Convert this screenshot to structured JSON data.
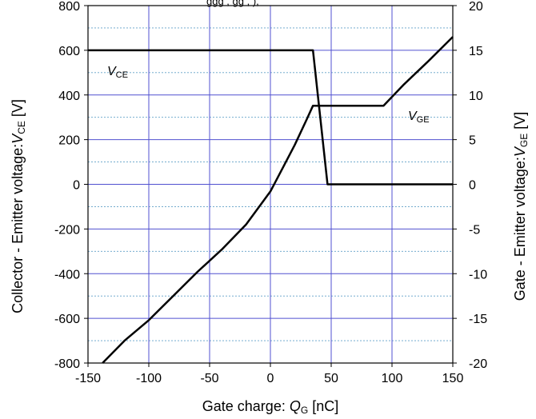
{
  "chart_data": {
    "type": "line",
    "top_note": "ggg  , gg  , ),",
    "xlabel": "Gate charge: ",
    "xlabel_var": "Q",
    "xlabel_sub": "G",
    "xlabel_unit": " [nC]",
    "ylabel": "Collector - Emitter voltage:",
    "ylabel_var": "V",
    "ylabel_sub": "CE",
    "ylabel_unit": " [V]",
    "y2label": "Gate - Emitter voltage:",
    "y2label_var": "V",
    "y2label_sub": "GE",
    "y2label_unit": " [V]",
    "xlim": [
      -150,
      150
    ],
    "ylim": [
      -800,
      800
    ],
    "y2lim": [
      -20,
      20
    ],
    "x_ticks": [
      -150,
      -100,
      -50,
      0,
      50,
      100,
      150
    ],
    "y_ticks": [
      -800,
      -600,
      -400,
      -200,
      0,
      200,
      400,
      600,
      800
    ],
    "y2_ticks": [
      -20,
      -15,
      -10,
      -5,
      0,
      5,
      10,
      15,
      20
    ],
    "grid": true,
    "series": [
      {
        "name": "V",
        "name_sub": "CE",
        "axis": "left",
        "color": "#000000",
        "x": [
          -150,
          35,
          47,
          150
        ],
        "y": [
          600,
          600,
          0,
          0
        ]
      },
      {
        "name": "V",
        "name_sub": "GE",
        "axis": "right",
        "color": "#000000",
        "x": [
          -138,
          -120,
          -100,
          -80,
          -60,
          -40,
          -20,
          0,
          10,
          20,
          30,
          35,
          40,
          60,
          80,
          93,
          110,
          130,
          150
        ],
        "y": [
          -20,
          -17.5,
          -15.2,
          -12.5,
          -9.8,
          -7.3,
          -4.5,
          -0.8,
          1.8,
          4.4,
          7.3,
          8.8,
          8.8,
          8.8,
          8.8,
          8.8,
          11.2,
          13.8,
          16.5
        ]
      }
    ],
    "colors": {
      "major_grid": "#5050d0",
      "minor_grid": "#60a0c8",
      "line": "#000000"
    }
  }
}
